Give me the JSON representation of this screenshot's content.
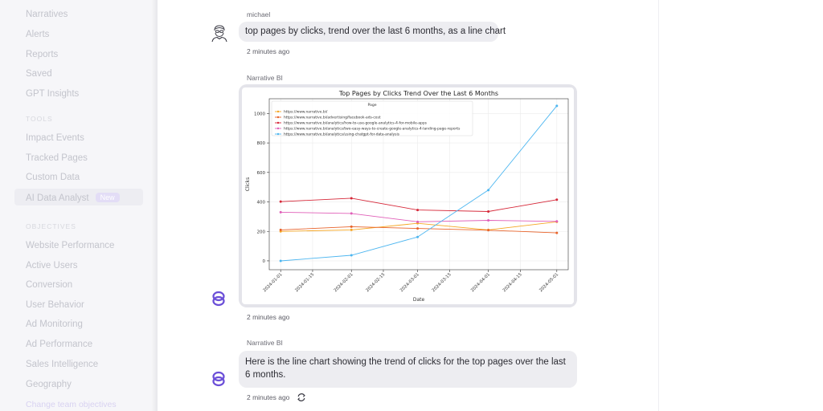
{
  "sidebar": {
    "items_top": [
      "Narratives",
      "Alerts",
      "Reports",
      "Saved",
      "GPT Insights"
    ],
    "tools_section": "TOOLS",
    "tools_items": [
      "Impact Events",
      "Tracked Pages",
      "Custom Data"
    ],
    "active_item": "AI Data Analyst",
    "active_badge": "New",
    "objectives_section": "OBJECTIVES",
    "objective_items": [
      "Website Performance",
      "Active Users",
      "Conversion",
      "User Behavior",
      "Ad Monitoring",
      "Ad Performance",
      "Sales Intelligence",
      "Geography"
    ],
    "change_link": "Change team objectives"
  },
  "chat": {
    "user_message": {
      "sender": "michael",
      "text": "top pages by clicks, trend over the last 6 months, as a line chart",
      "time": "2 minutes ago",
      "avatar_icon": "user-avatar-icon"
    },
    "bot_chart_message": {
      "sender": "Narrative BI",
      "time": "2 minutes ago",
      "avatar_icon": "narrative-bi-logo-icon"
    },
    "bot_text_message": {
      "sender": "Narrative BI",
      "text": "Here is the line chart showing the trend of clicks for the top pages over the last 6 months.",
      "time": "2 minutes ago",
      "action_icon": "refresh-icon"
    }
  },
  "colors": {
    "accent": "#6b4fd8",
    "bubble_bg": "#ededf1"
  },
  "chart_data": {
    "type": "line",
    "title": "Top Pages by Clicks Trend Over the Last 6 Months",
    "xlabel": "Date",
    "ylabel": "Clicks",
    "x": [
      "2024-01-01",
      "2024-02-01",
      "2024-03-01",
      "2024-04-01",
      "2024-05-01"
    ],
    "x_ticks": [
      "2024-01-01",
      "2024-01-15",
      "2024-02-01",
      "2024-02-15",
      "2024-03-01",
      "2024-03-15",
      "2024-04-01",
      "2024-04-15",
      "2024-05-01"
    ],
    "y_ticks": [
      0,
      200,
      400,
      600,
      800,
      1000
    ],
    "ylim": [
      -60,
      1100
    ],
    "grid": true,
    "legend_title": "Page",
    "legend_position": "top-left",
    "series": [
      {
        "name": "https://www.narrative.bi/",
        "color": "#f5a623",
        "values": [
          200,
          210,
          255,
          210,
          265
        ]
      },
      {
        "name": "https://www.narrative.bi/advertising/facebook-ads-cost",
        "color": "#e8632a",
        "values": [
          210,
          232,
          220,
          208,
          190
        ]
      },
      {
        "name": "https://www.narrative.bi/analytics/how-to-use-google-analytics-4-for-mobile-apps",
        "color": "#d62839",
        "values": [
          402,
          425,
          345,
          335,
          415
        ]
      },
      {
        "name": "https://www.narrative.bi/analytics/two-easy-ways-to-create-google-analytics-4-landing-page-reports",
        "color": "#e05fb8",
        "values": [
          330,
          322,
          265,
          275,
          268
        ]
      },
      {
        "name": "https://www.narrative.bi/analytics/using-chatgpt-for-data-analysis",
        "color": "#4db6f0",
        "values": [
          0,
          38,
          162,
          480,
          1052
        ]
      }
    ]
  }
}
